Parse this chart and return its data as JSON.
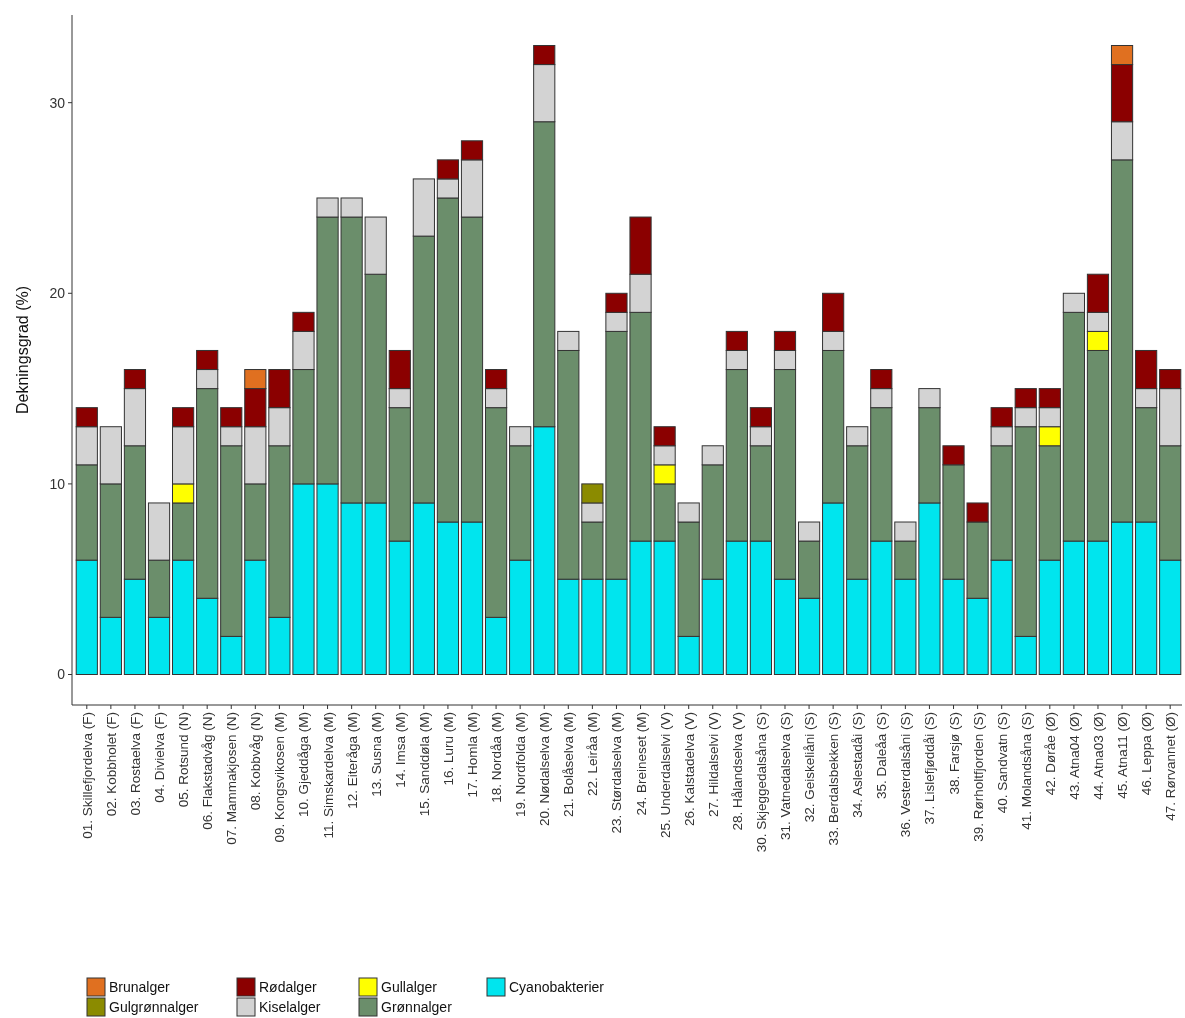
{
  "chart_data": {
    "type": "bar",
    "stacked": true,
    "ylabel": "Dekningsgrad (%)",
    "ylim": [
      -1.6,
      34.6
    ],
    "yticks": [
      0,
      10,
      20,
      30
    ],
    "grid": false,
    "legend": "bottom",
    "categories": [
      "01. Skillefjordelva (F)",
      "02. Kobbholet (F)",
      "03. Rostaelva (F)",
      "04. Divielva (F)",
      "05. Rotsund (N)",
      "06. Flakstadvåg (N)",
      "07. Mammakjosen (N)",
      "08. Kobbvåg (N)",
      "09. Kongsvikosen (M)",
      "10. Gjeddåga (M)",
      "11. Simskardelva (M)",
      "12. Eiteråga (M)",
      "13. Susna (M)",
      "14. Imsa (M)",
      "15. Sanddøla (M)",
      "16. Luru (M)",
      "17. Homla (M)",
      "18. Nordåa (M)",
      "19. Nordfolda (M)",
      "20. Nødalselva (M)",
      "21. Bolåselva (M)",
      "22. Leiråa (M)",
      "23. Størdalselva (M)",
      "24. Breineset (M)",
      "25. Underdalselvi (V)",
      "26. Kalstadelva (V)",
      "27. Hildalselvi (V)",
      "28. Hålandselva (V)",
      "30. Skjeggedalsåna (S)",
      "31. Vatnedalselva (S)",
      "32. Geiskeliåni (S)",
      "33. Berdalsbekken (S)",
      "34. Aslestadåi (S)",
      "35. Daleåa (S)",
      "36. Vesterdalsåni (S)",
      "37. Lislefjøddåi (S)",
      "38. Farsjø (S)",
      "39. Rørholtfjorden (S)",
      "40. Sandvatn (S)",
      "41. Molandsåna (S)",
      "42. Døråe (Ø)",
      "43. Atna04 (Ø)",
      "44. Atna03 (Ø)",
      "45. Atna11 (Ø)",
      "46. Leppa (Ø)",
      "47. Rørvannet (Ø)"
    ],
    "series": [
      {
        "name": "Cyanobakterier",
        "color": "#00e5ee",
        "values": [
          6,
          3,
          5,
          3,
          6,
          4,
          2,
          6,
          3,
          10,
          10,
          9,
          9,
          7,
          9,
          8,
          8,
          3,
          6,
          13,
          5,
          5,
          5,
          7,
          7,
          2,
          5,
          7,
          7,
          5,
          4,
          9,
          5,
          7,
          5,
          9,
          5,
          4,
          6,
          2,
          6,
          7,
          7,
          8,
          8,
          6
        ]
      },
      {
        "name": "Grønnalger",
        "color": "#6b8e6b",
        "values": [
          5,
          7,
          7,
          3,
          3,
          11,
          10,
          4,
          9,
          6,
          14,
          15,
          12,
          7,
          14,
          17,
          16,
          11,
          6,
          16,
          12,
          3,
          13,
          12,
          3,
          6,
          6,
          9,
          5,
          11,
          3,
          8,
          7,
          7,
          2,
          5,
          6,
          4,
          6,
          11,
          6,
          12,
          10,
          19,
          6,
          6
        ]
      },
      {
        "name": "Gullalger",
        "color": "#ffff00",
        "values": [
          0,
          0,
          0,
          0,
          1,
          0,
          0,
          0,
          0,
          0,
          0,
          0,
          0,
          0,
          0,
          0,
          0,
          0,
          0,
          0,
          0,
          0,
          0,
          0,
          1,
          0,
          0,
          0,
          0,
          0,
          0,
          0,
          0,
          0,
          0,
          0,
          0,
          0,
          0,
          0,
          1,
          0,
          1,
          0,
          0,
          0
        ]
      },
      {
        "name": "Kiselalger",
        "color": "#d3d3d3",
        "values": [
          2,
          3,
          3,
          3,
          3,
          1,
          1,
          3,
          2,
          2,
          1,
          1,
          3,
          1,
          3,
          1,
          3,
          1,
          1,
          3,
          1,
          1,
          1,
          2,
          1,
          1,
          1,
          1,
          1,
          1,
          1,
          1,
          1,
          1,
          1,
          1,
          0,
          0,
          1,
          1,
          1,
          1,
          1,
          2,
          1,
          3
        ]
      },
      {
        "name": "Gulgrønnalger",
        "color": "#8b8b00",
        "values": [
          0,
          0,
          0,
          0,
          0,
          0,
          0,
          0,
          0,
          0,
          0,
          0,
          0,
          0,
          0,
          0,
          0,
          0,
          0,
          0,
          0,
          1,
          0,
          0,
          0,
          0,
          0,
          0,
          0,
          0,
          0,
          0,
          0,
          0,
          0,
          0,
          0,
          0,
          0,
          0,
          0,
          0,
          0,
          0,
          0,
          0
        ]
      },
      {
        "name": "Rødalger",
        "color": "#8b0000",
        "values": [
          1,
          0,
          1,
          0,
          1,
          1,
          1,
          2,
          2,
          1,
          0,
          0,
          0,
          2,
          0,
          1,
          1,
          1,
          0,
          1,
          0,
          0,
          1,
          3,
          1,
          0,
          0,
          1,
          1,
          1,
          0,
          2,
          0,
          1,
          0,
          0,
          1,
          1,
          1,
          1,
          1,
          0,
          2,
          3,
          2,
          1
        ]
      },
      {
        "name": "Brunalger",
        "color": "#e07020",
        "values": [
          0,
          0,
          0,
          0,
          0,
          0,
          0,
          1,
          0,
          0,
          0,
          0,
          0,
          0,
          0,
          0,
          0,
          0,
          0,
          0,
          0,
          0,
          0,
          0,
          0,
          0,
          0,
          0,
          0,
          0,
          0,
          0,
          0,
          0,
          0,
          0,
          0,
          0,
          0,
          0,
          0,
          0,
          0,
          1,
          0,
          0
        ]
      }
    ]
  }
}
